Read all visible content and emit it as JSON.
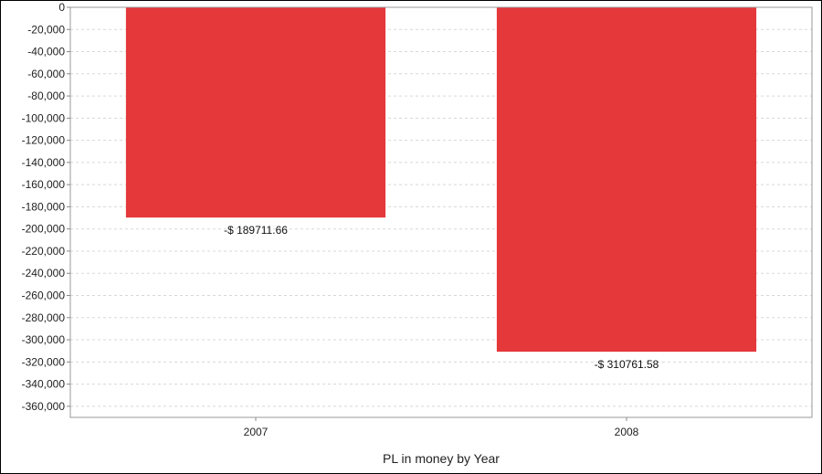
{
  "chart_data": {
    "type": "bar",
    "title": "",
    "xlabel": "PL in money by Year",
    "ylabel": "",
    "categories": [
      "2007",
      "2008"
    ],
    "series": [
      {
        "values": [
          -189711.66,
          -310761.58
        ],
        "data_labels": [
          "-$ 189711.66",
          "-$ 310761.58"
        ],
        "color": "#e5383b"
      }
    ],
    "ylim": [
      -370000,
      0
    ],
    "yticks": [
      0,
      -20000,
      -40000,
      -60000,
      -80000,
      -100000,
      -120000,
      -140000,
      -160000,
      -180000,
      -200000,
      -220000,
      -240000,
      -260000,
      -280000,
      -300000,
      -320000,
      -340000,
      -360000
    ],
    "ytick_labels": [
      "0",
      "-20,000",
      "-40,000",
      "-60,000",
      "-80,000",
      "-100,000",
      "-120,000",
      "-140,000",
      "-160,000",
      "-180,000",
      "-200,000",
      "-220,000",
      "-240,000",
      "-260,000",
      "-280,000",
      "-300,000",
      "-320,000",
      "-340,000",
      "-360,000"
    ],
    "grid": true,
    "legend": "none"
  }
}
